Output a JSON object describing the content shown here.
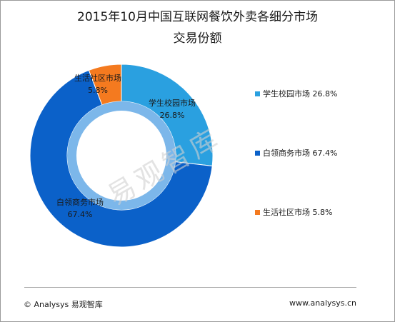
{
  "title": "2015年10月中国互联网餐饮外卖各细分市场",
  "subtitle": "交易份额",
  "watermark": "易观智库",
  "footer": {
    "left": "© Analysys 易观智库",
    "right": "www.analysys.cn"
  },
  "chart_data": {
    "type": "pie",
    "variant": "donut",
    "title": "2015年10月中国互联网餐饮外卖各细分市场",
    "subtitle": "交易份额",
    "legend_position": "right",
    "slices": [
      {
        "name": "学生校园市场",
        "value": 26.8,
        "label": "26.8%",
        "color": "#2aa0e0"
      },
      {
        "name": "白领商务市场",
        "value": 67.4,
        "label": "67.4%",
        "color": "#0b61c9"
      },
      {
        "name": "生活社区市场",
        "value": 5.8,
        "label": "5.8%",
        "color": "#f47a1f"
      }
    ]
  }
}
